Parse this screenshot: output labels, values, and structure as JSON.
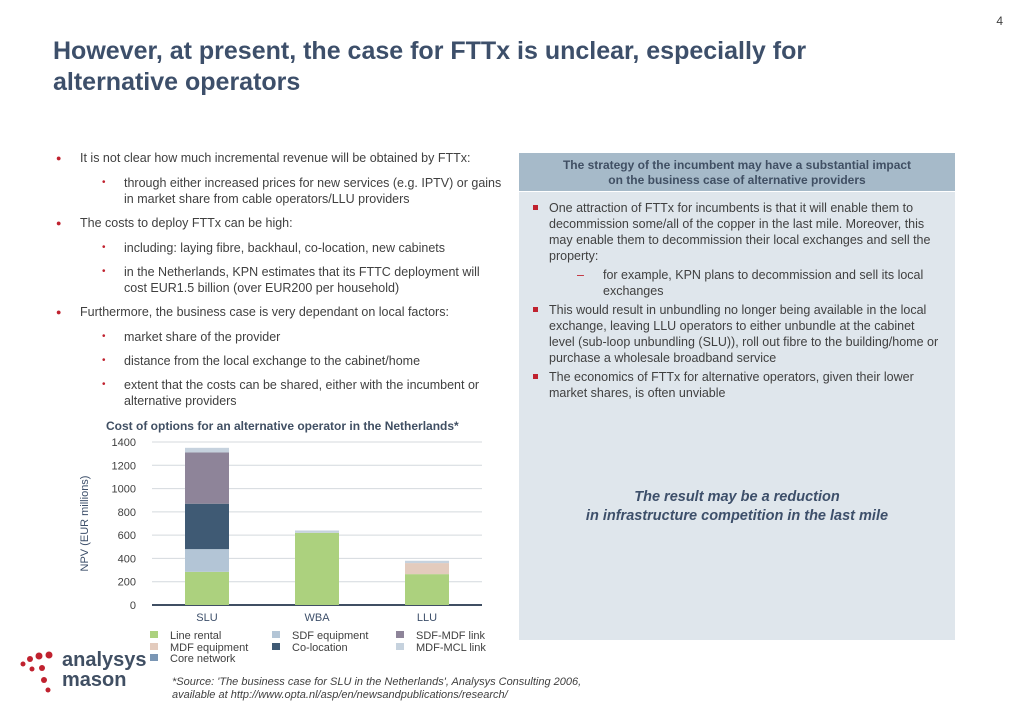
{
  "page_number": "4",
  "title": "However, at present, the case for FTTx is unclear, especially for alternative operators",
  "left_bullets": {
    "b1": "It is not clear how much incremental revenue will be obtained by FTTx:",
    "b1_s1": "through either increased prices for new services (e.g. IPTV) or gains in market share from cable operators/LLU providers",
    "b2": "The costs to deploy FTTx can be high:",
    "b2_s1": "including: laying fibre, backhaul, co-location, new cabinets",
    "b2_s2": "in the Netherlands, KPN estimates that its FTTC deployment will cost EUR1.5 billion (over EUR200 per household)",
    "b3": "Furthermore, the business case is very dependant on local factors:",
    "b3_s1": "market share of the provider",
    "b3_s2": "distance from the local exchange to the cabinet/home",
    "b3_s3": "extent that the costs can be shared, either with the incumbent or alternative providers"
  },
  "panel": {
    "header_line1": "The strategy of the incumbent may have a substantial impact",
    "header_line2": "on the business case of alternative providers",
    "p1": "One attraction of FTTx for incumbents is that it will enable them to decommission some/all of the copper in the last mile. Moreover, this may enable them to decommission their local exchanges and sell the property:",
    "p1_d1": "for example, KPN plans to decommission and sell its local exchanges",
    "p2": "This would result in unbundling no longer being available in the local exchange, leaving LLU operators to either unbundle at the cabinet level (sub-loop unbundling (SLU)), roll out fibre to the building/home or purchase a wholesale broadband service",
    "p3": "The economics of FTTx for alternative operators, given their lower market shares, is often unviable",
    "result_line1": "The result may be a reduction",
    "result_line2": "in infrastructure competition in the last mile"
  },
  "chart_data": {
    "type": "bar",
    "stacked": true,
    "title": "Cost of options for an alternative operator in the Netherlands*",
    "ylabel": "NPV (EUR millions)",
    "xlabel": "",
    "categories": [
      "SLU",
      "WBA",
      "LLU"
    ],
    "ylim": [
      0,
      1400
    ],
    "yticks": [
      0,
      200,
      400,
      600,
      800,
      1000,
      1200,
      1400
    ],
    "series": [
      {
        "name": "Line rental",
        "color": "#acd17e",
        "values": [
          285,
          620,
          265
        ]
      },
      {
        "name": "MDF equipment",
        "color": "#e3cbbd",
        "values": [
          0,
          0,
          95
        ]
      },
      {
        "name": "Core network",
        "color": "#7a96b4",
        "values": [
          0,
          0,
          0
        ]
      },
      {
        "name": "SDF equipment",
        "color": "#b3c5d6",
        "values": [
          195,
          0,
          0
        ]
      },
      {
        "name": "Co-location",
        "color": "#3f5a74",
        "values": [
          390,
          0,
          0
        ]
      },
      {
        "name": "SDF-MDF link",
        "color": "#8e8499",
        "values": [
          440,
          0,
          0
        ]
      },
      {
        "name": "MDF-MCL link",
        "color": "#c6d2de",
        "values": [
          40,
          20,
          20
        ]
      }
    ],
    "grid": true
  },
  "source_line1": "*Source: 'The business case for SLU in the Netherlands', Analysys Consulting 2006,",
  "source_line2": "available at http://www.opta.nl/asp/en/newsandpublications/research/",
  "logo": {
    "line1": "analysys",
    "line2": "mason"
  }
}
